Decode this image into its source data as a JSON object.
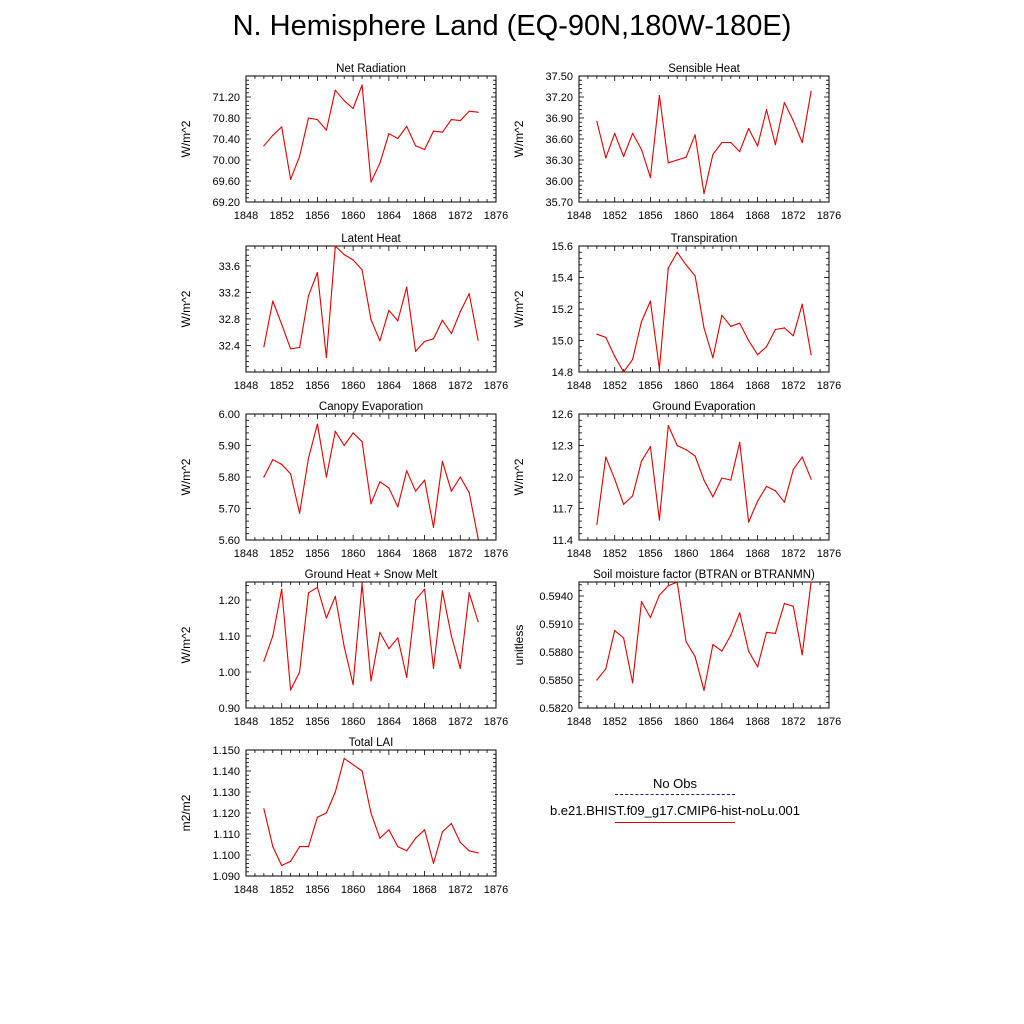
{
  "title": "N. Hemisphere Land (EQ-90N,180W-180E)",
  "legend": {
    "obs_label": "No Obs",
    "model_label": "b.e21.BHIST.f09_g17.CMIP6-hist-noLu.001",
    "obs_color": "#1e1e7a",
    "model_color": "#e00000"
  },
  "chart_data": [
    {
      "type": "line",
      "title": "Net Radiation",
      "ylabel": "W/m^2",
      "xlim": [
        1848,
        1876
      ],
      "ylim": [
        69.2,
        71.6
      ],
      "x_ticks": [
        1848,
        1852,
        1856,
        1860,
        1864,
        1868,
        1872,
        1876
      ],
      "y_ticks": [
        "69.20",
        "69.60",
        "70.00",
        "70.40",
        "70.80",
        "71.20"
      ],
      "series": [
        {
          "color": "#e00000",
          "x": [
            1850,
            1851,
            1852,
            1853,
            1854,
            1855,
            1856,
            1857,
            1858,
            1859,
            1860,
            1861,
            1862,
            1863,
            1864,
            1865,
            1866,
            1867,
            1868,
            1869,
            1870,
            1871,
            1872,
            1873,
            1874
          ],
          "y": [
            70.27,
            70.47,
            70.63,
            69.63,
            70.07,
            70.8,
            70.77,
            70.57,
            71.33,
            71.13,
            70.98,
            71.43,
            69.58,
            69.94,
            70.5,
            70.41,
            70.64,
            70.27,
            70.2,
            70.55,
            70.53,
            70.77,
            70.75,
            70.93,
            70.91
          ]
        }
      ]
    },
    {
      "type": "line",
      "title": "Sensible Heat",
      "ylabel": "W/m^2",
      "xlim": [
        1848,
        1876
      ],
      "ylim": [
        35.7,
        37.5
      ],
      "x_ticks": [
        1848,
        1852,
        1856,
        1860,
        1864,
        1868,
        1872,
        1876
      ],
      "y_ticks": [
        "35.70",
        "36.00",
        "36.30",
        "36.60",
        "36.90",
        "37.20",
        "37.50"
      ],
      "series": [
        {
          "color": "#e00000",
          "x": [
            1850,
            1851,
            1852,
            1853,
            1854,
            1855,
            1856,
            1857,
            1858,
            1859,
            1860,
            1861,
            1862,
            1863,
            1864,
            1865,
            1866,
            1867,
            1868,
            1869,
            1870,
            1871,
            1872,
            1873,
            1874
          ],
          "y": [
            36.85,
            36.33,
            36.68,
            36.35,
            36.68,
            36.45,
            36.05,
            37.22,
            36.26,
            36.3,
            36.34,
            36.66,
            35.82,
            36.38,
            36.55,
            36.55,
            36.42,
            36.75,
            36.5,
            37.02,
            36.52,
            37.12,
            36.86,
            36.55,
            37.28
          ]
        }
      ]
    },
    {
      "type": "line",
      "title": "Latent Heat",
      "ylabel": "W/m^2",
      "xlim": [
        1848,
        1876
      ],
      "ylim": [
        32.0,
        33.9
      ],
      "x_ticks": [
        1848,
        1852,
        1856,
        1860,
        1864,
        1868,
        1872,
        1876
      ],
      "y_ticks": [
        "32.4",
        "32.8",
        "33.2",
        "33.6"
      ],
      "series": [
        {
          "color": "#e00000",
          "x": [
            1850,
            1851,
            1852,
            1853,
            1854,
            1855,
            1856,
            1857,
            1858,
            1859,
            1860,
            1861,
            1862,
            1863,
            1864,
            1865,
            1866,
            1867,
            1868,
            1869,
            1870,
            1871,
            1872,
            1873,
            1874
          ],
          "y": [
            32.38,
            33.07,
            32.72,
            32.35,
            32.37,
            33.15,
            33.5,
            32.22,
            33.9,
            33.77,
            33.69,
            33.54,
            32.79,
            32.47,
            32.93,
            32.77,
            33.28,
            32.31,
            32.46,
            32.5,
            32.78,
            32.58,
            32.91,
            33.18,
            32.48
          ]
        }
      ]
    },
    {
      "type": "line",
      "title": "Transpiration",
      "ylabel": "W/m^2",
      "xlim": [
        1848,
        1876
      ],
      "ylim": [
        14.8,
        15.6
      ],
      "x_ticks": [
        1848,
        1852,
        1856,
        1860,
        1864,
        1868,
        1872,
        1876
      ],
      "y_ticks": [
        "14.8",
        "15.0",
        "15.2",
        "15.4",
        "15.6"
      ],
      "series": [
        {
          "color": "#e00000",
          "x": [
            1850,
            1851,
            1852,
            1853,
            1854,
            1855,
            1856,
            1857,
            1858,
            1859,
            1860,
            1861,
            1862,
            1863,
            1864,
            1865,
            1866,
            1867,
            1868,
            1869,
            1870,
            1871,
            1872,
            1873,
            1874
          ],
          "y": [
            15.04,
            15.02,
            14.9,
            14.8,
            14.88,
            15.12,
            15.25,
            14.82,
            15.46,
            15.56,
            15.48,
            15.41,
            15.08,
            14.89,
            15.16,
            15.09,
            15.11,
            15.0,
            14.91,
            14.96,
            15.07,
            15.08,
            15.03,
            15.23,
            14.91
          ]
        }
      ]
    },
    {
      "type": "line",
      "title": "Canopy Evaporation",
      "ylabel": "W/m^2",
      "xlim": [
        1848,
        1876
      ],
      "ylim": [
        5.6,
        6.0
      ],
      "x_ticks": [
        1848,
        1852,
        1856,
        1860,
        1864,
        1868,
        1872,
        1876
      ],
      "y_ticks": [
        "5.60",
        "5.70",
        "5.80",
        "5.90",
        "6.00"
      ],
      "series": [
        {
          "color": "#e00000",
          "x": [
            1850,
            1851,
            1852,
            1853,
            1854,
            1855,
            1856,
            1857,
            1858,
            1859,
            1860,
            1861,
            1862,
            1863,
            1864,
            1865,
            1866,
            1867,
            1868,
            1869,
            1870,
            1871,
            1872,
            1873,
            1874
          ],
          "y": [
            5.8,
            5.855,
            5.84,
            5.81,
            5.685,
            5.86,
            5.968,
            5.8,
            5.945,
            5.9,
            5.94,
            5.912,
            5.715,
            5.785,
            5.765,
            5.705,
            5.82,
            5.755,
            5.79,
            5.64,
            5.85,
            5.755,
            5.8,
            5.75,
            5.605
          ]
        }
      ]
    },
    {
      "type": "line",
      "title": "Ground Evaporation",
      "ylabel": "W/m^2",
      "xlim": [
        1848,
        1876
      ],
      "ylim": [
        11.4,
        12.6
      ],
      "x_ticks": [
        1848,
        1852,
        1856,
        1860,
        1864,
        1868,
        1872,
        1876
      ],
      "y_ticks": [
        "11.4",
        "11.7",
        "12.0",
        "12.3",
        "12.6"
      ],
      "series": [
        {
          "color": "#e00000",
          "x": [
            1850,
            1851,
            1852,
            1853,
            1854,
            1855,
            1856,
            1857,
            1858,
            1859,
            1860,
            1861,
            1862,
            1863,
            1864,
            1865,
            1866,
            1867,
            1868,
            1869,
            1870,
            1871,
            1872,
            1873,
            1874
          ],
          "y": [
            11.55,
            12.19,
            11.98,
            11.74,
            11.82,
            12.15,
            12.29,
            11.59,
            12.49,
            12.3,
            12.26,
            12.2,
            11.97,
            11.81,
            11.99,
            11.97,
            12.33,
            11.57,
            11.77,
            11.91,
            11.87,
            11.76,
            12.07,
            12.19,
            11.98
          ]
        }
      ]
    },
    {
      "type": "line",
      "title": "Ground Heat + Snow Melt",
      "ylabel": "W/m^2",
      "xlim": [
        1848,
        1876
      ],
      "ylim": [
        0.9,
        1.25
      ],
      "x_ticks": [
        1848,
        1852,
        1856,
        1860,
        1864,
        1868,
        1872,
        1876
      ],
      "y_ticks": [
        "0.90",
        "1.00",
        "1.10",
        "1.20"
      ],
      "series": [
        {
          "color": "#e00000",
          "x": [
            1850,
            1851,
            1852,
            1853,
            1854,
            1855,
            1856,
            1857,
            1858,
            1859,
            1860,
            1861,
            1862,
            1863,
            1864,
            1865,
            1866,
            1867,
            1868,
            1869,
            1870,
            1871,
            1872,
            1873,
            1874
          ],
          "y": [
            1.03,
            1.1,
            1.23,
            0.95,
            1.0,
            1.22,
            1.235,
            1.15,
            1.21,
            1.07,
            0.965,
            1.245,
            0.975,
            1.11,
            1.065,
            1.095,
            0.985,
            1.2,
            1.23,
            1.01,
            1.225,
            1.1,
            1.01,
            1.22,
            1.14
          ]
        }
      ]
    },
    {
      "type": "line",
      "title": "Soil moisture factor (BTRAN or BTRANMN)",
      "ylabel": "unitless",
      "xlim": [
        1848,
        1876
      ],
      "ylim": [
        0.582,
        0.5955
      ],
      "x_ticks": [
        1848,
        1852,
        1856,
        1860,
        1864,
        1868,
        1872,
        1876
      ],
      "y_ticks": [
        "0.5820",
        "0.5850",
        "0.5880",
        "0.5910",
        "0.5940"
      ],
      "series": [
        {
          "color": "#e00000",
          "x": [
            1850,
            1851,
            1852,
            1853,
            1854,
            1855,
            1856,
            1857,
            1858,
            1859,
            1860,
            1861,
            1862,
            1863,
            1864,
            1865,
            1866,
            1867,
            1868,
            1869,
            1870,
            1871,
            1872,
            1873,
            1874
          ],
          "y": [
            0.585,
            0.5862,
            0.5903,
            0.5895,
            0.5847,
            0.5934,
            0.5917,
            0.5941,
            0.5951,
            0.5955,
            0.5891,
            0.5875,
            0.5839,
            0.5888,
            0.5881,
            0.5898,
            0.5922,
            0.5881,
            0.5864,
            0.5901,
            0.59,
            0.5932,
            0.5929,
            0.5877,
            0.5955
          ]
        }
      ]
    },
    {
      "type": "line",
      "title": "Total LAI",
      "ylabel": "m2/m2",
      "xlim": [
        1848,
        1876
      ],
      "ylim": [
        1.09,
        1.15
      ],
      "x_ticks": [
        1848,
        1852,
        1856,
        1860,
        1864,
        1868,
        1872,
        1876
      ],
      "y_ticks": [
        "1.090",
        "1.100",
        "1.110",
        "1.120",
        "1.130",
        "1.140",
        "1.150"
      ],
      "series": [
        {
          "color": "#e00000",
          "x": [
            1850,
            1851,
            1852,
            1853,
            1854,
            1855,
            1856,
            1857,
            1858,
            1859,
            1860,
            1861,
            1862,
            1863,
            1864,
            1865,
            1866,
            1867,
            1868,
            1869,
            1870,
            1871,
            1872,
            1873,
            1874
          ],
          "y": [
            1.122,
            1.104,
            1.095,
            1.097,
            1.104,
            1.104,
            1.118,
            1.12,
            1.13,
            1.146,
            1.143,
            1.14,
            1.12,
            1.108,
            1.112,
            1.104,
            1.102,
            1.108,
            1.112,
            1.096,
            1.111,
            1.115,
            1.106,
            1.102,
            1.101
          ]
        }
      ]
    }
  ]
}
